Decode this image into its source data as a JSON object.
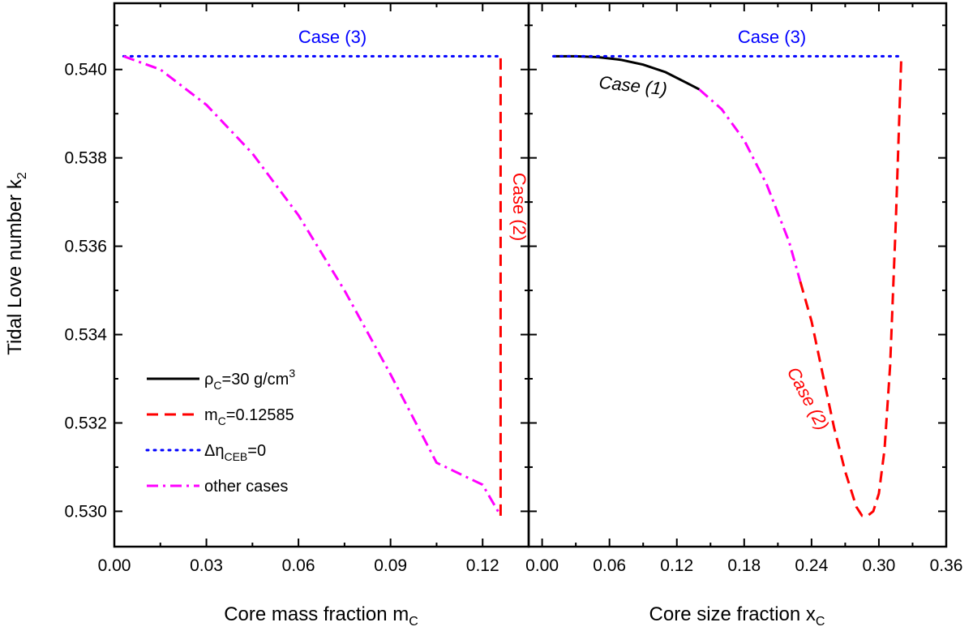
{
  "chart_data": [
    {
      "type": "line",
      "panel": "left",
      "xlabel": "Core mass fraction m",
      "xlabel_sub": "C",
      "ylabel": "Tidal Love number k",
      "ylabel_sub": "2",
      "xlim": [
        0.0,
        0.135
      ],
      "ylim": [
        0.5292,
        0.5415
      ],
      "xticks": [
        0.0,
        0.03,
        0.06,
        0.09,
        0.12
      ],
      "xtick_labels": [
        "0.00",
        "0.03",
        "0.06",
        "0.09",
        "0.12"
      ],
      "yticks": [
        0.53,
        0.532,
        0.534,
        0.536,
        0.538,
        0.54
      ],
      "ytick_labels": [
        "0.530",
        "0.532",
        "0.534",
        "0.536",
        "0.538",
        "0.540"
      ],
      "series": [
        {
          "name": "m_C=0.12585",
          "color": "#ff0000",
          "style": "dashed",
          "x": [
            0.12585,
            0.12585
          ],
          "y": [
            0.5299,
            0.5403
          ]
        },
        {
          "name": "Δη_CEB=0",
          "color": "#0000ff",
          "style": "dotted",
          "x": [
            0.003,
            0.12585
          ],
          "y": [
            0.5403,
            0.5403
          ]
        },
        {
          "name": "other cases",
          "color": "#ff00ff",
          "style": "dashdot",
          "x": [
            0.003,
            0.015,
            0.03,
            0.045,
            0.06,
            0.075,
            0.09,
            0.105,
            0.12,
            0.12585
          ],
          "y": [
            0.5403,
            0.54,
            0.5392,
            0.5381,
            0.5367,
            0.535,
            0.5331,
            0.5311,
            0.5306,
            0.5299
          ]
        }
      ],
      "annotations": [
        {
          "text": "Case (3)",
          "color": "#0000ff"
        },
        {
          "text": "Case (2)",
          "color": "#ff0000"
        }
      ],
      "legend": {
        "position": "bottom-left",
        "entries": [
          {
            "prefix": "ρ",
            "sub": "C",
            "suffix": "=30 g/cm",
            "sup": "3",
            "color": "#000000",
            "style": "solid"
          },
          {
            "prefix": "m",
            "sub": "C",
            "suffix": "=0.12585",
            "sup": "",
            "color": "#ff0000",
            "style": "dashed"
          },
          {
            "prefix": "Δη",
            "sub": "CEB",
            "suffix": "=0",
            "sup": "",
            "color": "#0000ff",
            "style": "dotted"
          },
          {
            "prefix": "other cases",
            "sub": "",
            "suffix": "",
            "sup": "",
            "color": "#ff00ff",
            "style": "dashdot"
          }
        ]
      }
    },
    {
      "type": "line",
      "panel": "right",
      "xlabel": "Core size fraction x",
      "xlabel_sub": "C",
      "xlim": [
        -0.012,
        0.36
      ],
      "ylim": [
        0.5292,
        0.5415
      ],
      "xticks": [
        0.0,
        0.06,
        0.12,
        0.18,
        0.24,
        0.3,
        0.36
      ],
      "xtick_labels": [
        "0.00",
        "0.06",
        "0.12",
        "0.18",
        "0.24",
        "0.30",
        "0.36"
      ],
      "yticks": [
        0.53,
        0.532,
        0.534,
        0.536,
        0.538,
        0.54
      ],
      "series": [
        {
          "name": "Case (1)",
          "color": "#000000",
          "style": "solid",
          "x": [
            0.01,
            0.03,
            0.05,
            0.07,
            0.09,
            0.11,
            0.13,
            0.14
          ],
          "y": [
            0.5403,
            0.5403,
            0.54028,
            0.54022,
            0.54011,
            0.53994,
            0.53968,
            0.53955
          ]
        },
        {
          "name": "other cases",
          "color": "#ff00ff",
          "style": "dashdot",
          "x": [
            0.14,
            0.16,
            0.18,
            0.2,
            0.22,
            0.23
          ],
          "y": [
            0.53955,
            0.5391,
            0.5384,
            0.5374,
            0.5361,
            0.5352
          ]
        },
        {
          "name": "Case (2)",
          "color": "#ff0000",
          "style": "dashed",
          "x": [
            0.23,
            0.24,
            0.25,
            0.26,
            0.27,
            0.28,
            0.285,
            0.29,
            0.295,
            0.3,
            0.305,
            0.31,
            0.315,
            0.32
          ],
          "y": [
            0.5352,
            0.5343,
            0.5331,
            0.5319,
            0.5309,
            0.5301,
            0.5299,
            0.5299,
            0.53,
            0.5304,
            0.5314,
            0.5333,
            0.5365,
            0.5403
          ]
        },
        {
          "name": "Case (3)",
          "color": "#0000ff",
          "style": "dotted",
          "x": [
            0.01,
            0.32
          ],
          "y": [
            0.5403,
            0.5403
          ]
        }
      ],
      "annotations": [
        {
          "text": "Case (3)",
          "color": "#0000ff"
        },
        {
          "text": "Case (1)",
          "color": "#000000"
        },
        {
          "text": "Case (2)",
          "color": "#ff0000"
        }
      ]
    }
  ]
}
